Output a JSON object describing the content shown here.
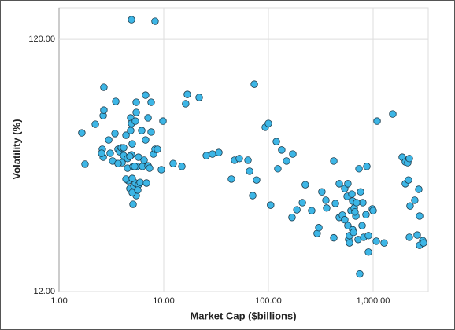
{
  "chart_data": {
    "type": "scatter",
    "x_label": "Market Cap ($billions)",
    "y_label": "Volatility  (%)",
    "xlog": true,
    "ylog": true,
    "grid": true,
    "color": "#3db6e6",
    "edge_color": "#1b3b4c",
    "xlim": [
      1,
      3360
    ],
    "ylim": [
      12,
      160
    ],
    "xticks": [
      {
        "value": 1,
        "label": "1.00"
      },
      {
        "value": 10,
        "label": "10.00"
      },
      {
        "value": 100,
        "label": "100.00"
      },
      {
        "value": 1000,
        "label": "1,000.00"
      }
    ],
    "yticks": [
      {
        "value": 12,
        "label": "12.00"
      },
      {
        "value": 120,
        "label": "120.00"
      }
    ],
    "x": [
      1.65,
      1.77,
      2.22,
      2.64,
      2.68,
      2.59,
      2.64,
      2.68,
      2.98,
      3.25,
      3.42,
      3.48,
      3.66,
      3.79,
      3.93,
      4.0,
      4.14,
      4.36,
      4.51,
      4.51,
      4.59,
      4.36,
      4.75,
      4.83,
      4.92,
      4.83,
      5.0,
      4.92,
      5.09,
      5.18,
      5.36,
      5.46,
      5.46,
      5.55,
      5.74,
      5.74,
      5.95,
      6.16,
      6.27,
      6.49,
      6.71,
      6.71,
      6.84,
      7.08,
      7.08,
      7.32,
      7.58,
      7.58,
      7.98,
      8.26,
      8.71,
      9.49,
      9.83,
      12.3,
      14.9,
      16.2,
      16.8,
      21.8,
      5.46,
      5.09,
      5.0,
      5.36,
      4.75,
      4.14,
      3.66,
      3.08,
      2.55,
      5.65,
      5.0,
      5.27,
      4.92,
      8.26,
      25.5,
      29.2,
      33.6,
      44.3,
      47.5,
      52.7,
      63.8,
      70.8,
      77.1,
      66.1,
      73.3,
      93.3,
      100,
      105,
      119,
      123,
      134,
      149,
      171,
      168,
      187,
      211,
      225,
      259,
      292,
      303,
      324,
      360,
      354,
      421,
      421,
      436,
      475,
      475,
      509,
      536,
      536,
      565,
      574,
      584,
      595,
      595,
      615,
      638,
      660,
      684,
      671,
      719,
      733,
      745,
      759,
      785,
      798,
      813,
      855,
      871,
      902,
      902,
      983,
      1000,
      1072,
      1091,
      1274,
      1541,
      1897,
      2032,
      2143,
      2032,
      2178,
      2254,
      2218,
      2500,
      2636,
      2729,
      2780,
      2780,
      2978,
      3027,
      2218,
      638,
      649,
      627,
      574,
      695
    ],
    "values": [
      51.1,
      38.4,
      55.3,
      59.8,
      77.5,
      44.0,
      40.9,
      62.9,
      47.9,
      39.5,
      50.8,
      68.1,
      44.0,
      43.0,
      44.6,
      38.9,
      41.5,
      50.0,
      40.4,
      37.0,
      33.0,
      33.5,
      30.7,
      58.6,
      55.7,
      52.2,
      46.2,
      41.8,
      37.6,
      31.6,
      32.3,
      67.6,
      61.6,
      37.6,
      40.9,
      31.8,
      32.5,
      52.2,
      37.6,
      39.8,
      47.9,
      72.1,
      32.3,
      37.8,
      58.6,
      37.0,
      67.6,
      51.5,
      42.1,
      44.0,
      44.0,
      36.5,
      56.9,
      38.6,
      37.6,
      66.7,
      72.6,
      70.6,
      28.8,
      26.6,
      29.6,
      56.9,
      41.2,
      44.6,
      38.6,
      42.4,
      42.4,
      30.3,
      33.7,
      37.6,
      143.6,
      141.6,
      41.5,
      42.1,
      42.7,
      33.5,
      39.8,
      40.4,
      39.8,
      28.8,
      33.2,
      36.0,
      79.7,
      53.8,
      55.7,
      26.4,
      47.2,
      36.8,
      43.7,
      39.5,
      42.1,
      23.6,
      25.3,
      27.0,
      31.8,
      25.1,
      20.4,
      21.5,
      29.8,
      25.7,
      27.6,
      39.5,
      19.6,
      26.8,
      32.1,
      23.6,
      24.1,
      30.7,
      23.1,
      28.6,
      21.9,
      19.3,
      20.0,
      18.7,
      25.1,
      27.4,
      25.7,
      23.9,
      24.8,
      19.3,
      36.8,
      14.1,
      29.8,
      21.9,
      27.0,
      19.7,
      24.2,
      37.6,
      20.0,
      17.2,
      25.5,
      25.1,
      19.0,
      56.9,
      18.7,
      60.7,
      40.9,
      39.2,
      38.9,
      32.1,
      33.2,
      26.2,
      19.7,
      27.6,
      20.1,
      30.5,
      23.9,
      18.3,
      19.1,
      18.7,
      40.4,
      21.1,
      20.6,
      29.2,
      32.1,
      27.0
    ]
  }
}
